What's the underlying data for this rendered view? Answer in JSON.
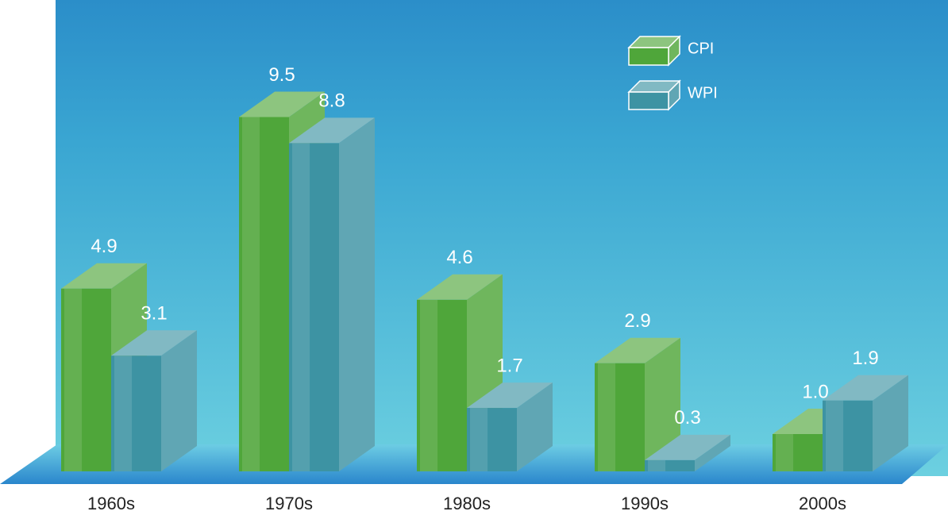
{
  "chart_data": {
    "type": "bar3d",
    "categories": [
      "1960s",
      "1970s",
      "1980s",
      "1990s",
      "2000s"
    ],
    "series": [
      {
        "name": "CPI",
        "color": "#4fa63a",
        "values": [
          4.9,
          9.5,
          4.6,
          2.9,
          1.0
        ],
        "value_labels": [
          "4.9",
          "9.5",
          "4.6",
          "2.9",
          "1.0"
        ]
      },
      {
        "name": "WPI",
        "color": "#3d93a3",
        "values": [
          3.1,
          8.8,
          1.7,
          0.3,
          1.9
        ],
        "value_labels": [
          "3.1",
          "8.8",
          "1.7",
          "0.3",
          "1.9"
        ]
      }
    ]
  }
}
